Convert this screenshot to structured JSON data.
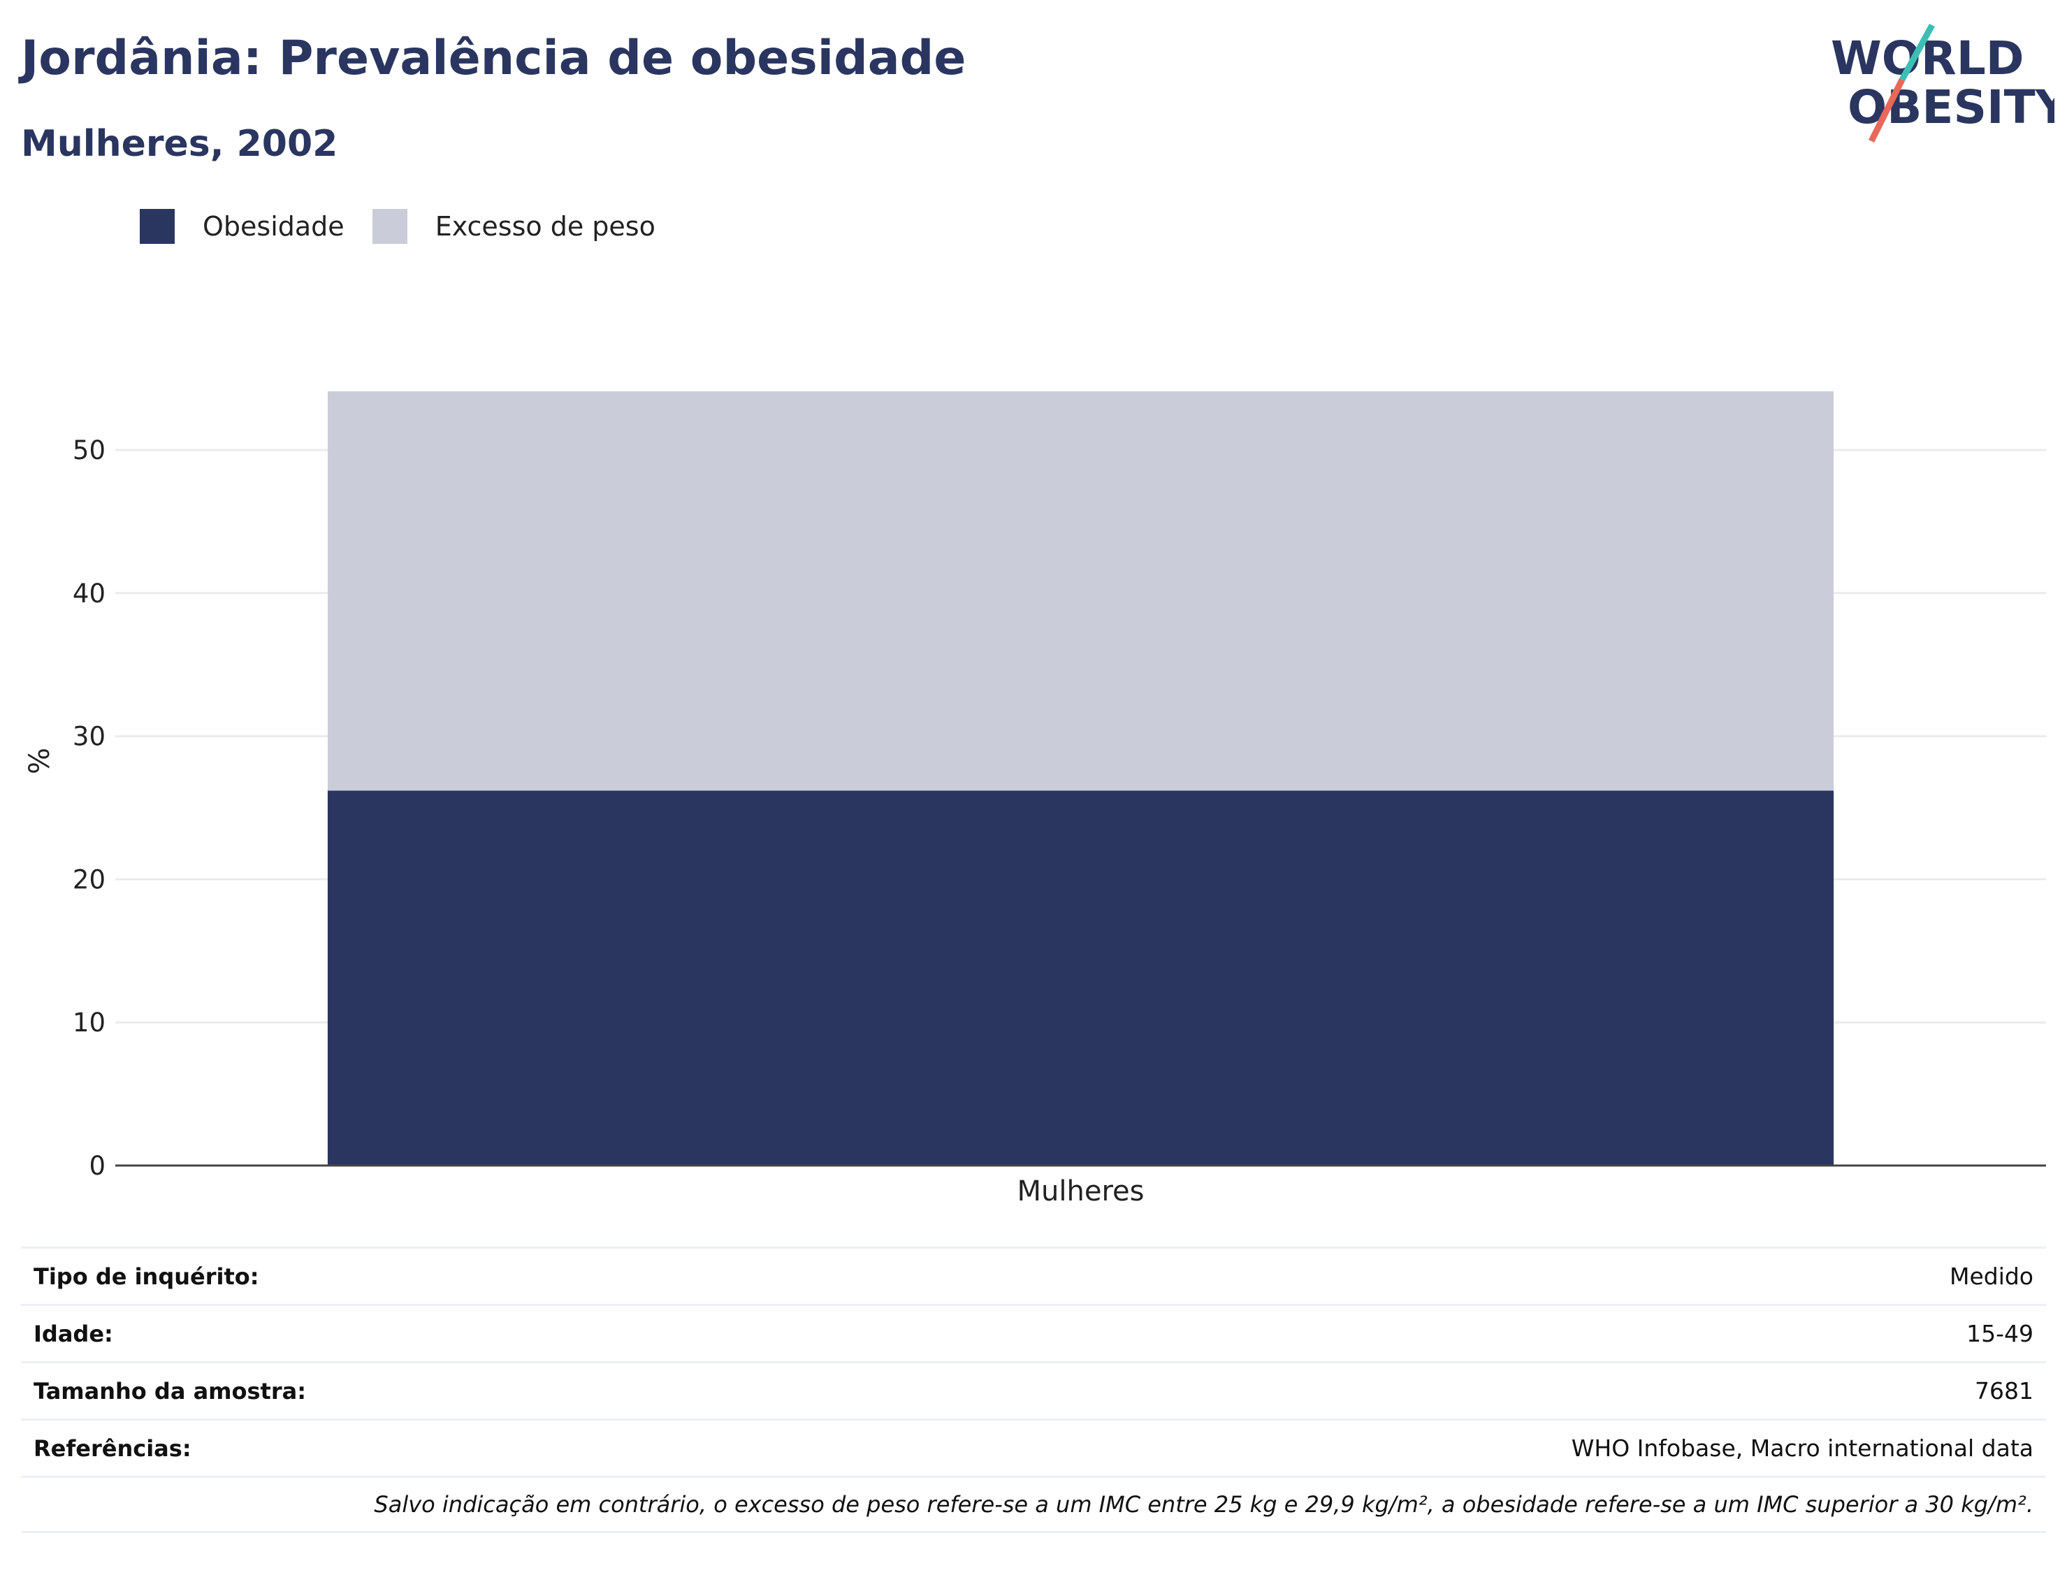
{
  "header": {
    "title": "Jordânia: Prevalência de obesidade",
    "subtitle": "Mulheres, 2002"
  },
  "logo": {
    "line1": "WORLD",
    "line2": "OBESITY",
    "colors": {
      "text": "#2a3660",
      "slash_top": "#3bbfb4",
      "slash_bottom": "#e8685a"
    }
  },
  "legend": {
    "items": [
      {
        "label": "Obesidade",
        "color": "#2a3660"
      },
      {
        "label": "Excesso de peso",
        "color": "#cacdd9"
      }
    ]
  },
  "chart_data": {
    "type": "bar",
    "stacked": true,
    "categories": [
      "Mulheres"
    ],
    "series": [
      {
        "name": "Obesidade",
        "values": [
          26.2
        ],
        "color": "#2a3660"
      },
      {
        "name": "Excesso de peso",
        "values": [
          27.9
        ],
        "color": "#cacdd9"
      }
    ],
    "ylabel": "%",
    "xlabel": "",
    "ylim": [
      0,
      54.1
    ],
    "yticks": [
      0,
      10,
      20,
      30,
      40,
      50
    ],
    "grid": true
  },
  "info_table": {
    "rows": [
      {
        "label": "Tipo de inquérito:",
        "value": "Medido"
      },
      {
        "label": "Idade:",
        "value": "15-49"
      },
      {
        "label": "Tamanho da amostra:",
        "value": "7681"
      },
      {
        "label": "Referências:",
        "value": "WHO Infobase, Macro international data"
      }
    ],
    "note": "Salvo indicação em contrário, o excesso de peso refere-se a um IMC entre 25 kg e 29,9 kg/m², a obesidade refere-se a um IMC superior a 30 kg/m²."
  }
}
